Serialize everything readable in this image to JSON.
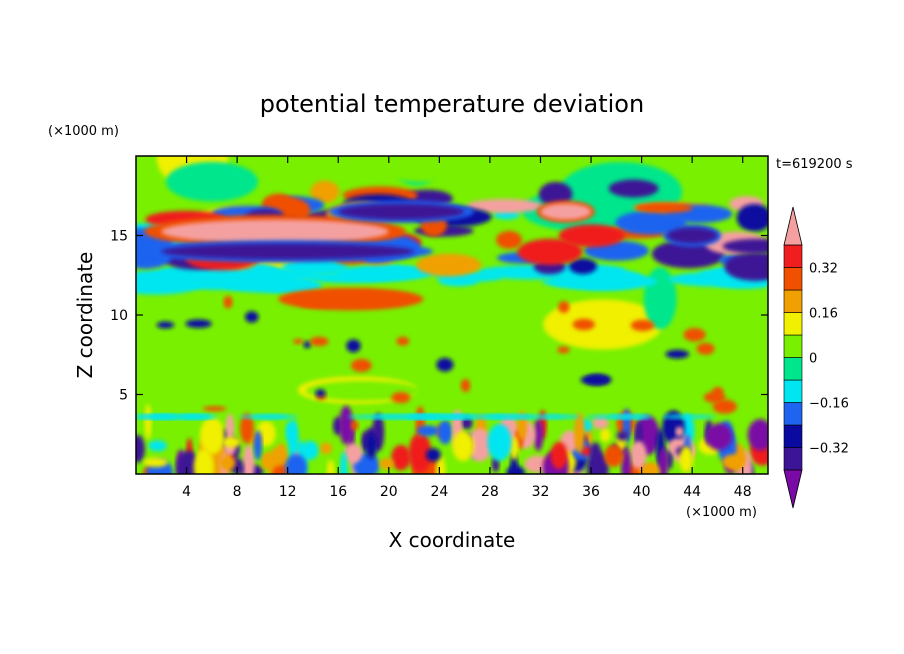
{
  "chart_data": {
    "type": "heatmap",
    "title": "potential temperature deviation",
    "xlabel": "X coordinate",
    "ylabel": "Z coordinate",
    "x_unit": "(×1000 m)",
    "y_unit": "(×1000 m)",
    "time_label": "t=619200 s",
    "xlim": [
      0,
      50
    ],
    "ylim": [
      0,
      20
    ],
    "x_ticks": [
      4,
      8,
      12,
      16,
      20,
      24,
      28,
      32,
      36,
      40,
      44,
      48
    ],
    "y_ticks": [
      5,
      10,
      15
    ],
    "colorbar": {
      "levels": [
        -0.48,
        -0.4,
        -0.32,
        -0.24,
        -0.16,
        -0.08,
        0,
        0.08,
        0.16,
        0.24,
        0.32,
        0.4
      ],
      "tick_values": [
        0.32,
        0.16,
        0,
        -0.16,
        -0.32
      ],
      "tick_labels": [
        "0.32",
        "0.16",
        "0",
        "−0.16",
        "−0.32"
      ],
      "colors": [
        "#7a0aa6",
        "#3c1496",
        "#0a0aa0",
        "#1e64f0",
        "#00e6f0",
        "#00e68c",
        "#78f000",
        "#f0f000",
        "#f0a000",
        "#f05000",
        "#f01e1e",
        "#f5a0a0"
      ]
    },
    "background_level": 0,
    "features": [
      {
        "name": "upper warm band",
        "x": [
          2,
          20
        ],
        "z": [
          14.5,
          16
        ],
        "value": 0.44
      },
      {
        "name": "upper cold band",
        "x": [
          2,
          22
        ],
        "z": [
          13.5,
          14.5
        ],
        "value": -0.36
      },
      {
        "name": "cold patch",
        "x": [
          16,
          26
        ],
        "z": [
          16,
          17
        ],
        "value": -0.36
      },
      {
        "name": "warm patch",
        "x": [
          32,
          36
        ],
        "z": [
          16,
          17
        ],
        "value": 0.4
      },
      {
        "name": "cold patch east",
        "x": [
          42,
          46
        ],
        "z": [
          14.5,
          15.5
        ],
        "value": -0.36
      },
      {
        "name": "mid warm streak",
        "x": [
          12,
          22
        ],
        "z": [
          10.5,
          11.5
        ],
        "value": 0.3
      },
      {
        "name": "boundary layer turbulence",
        "x": [
          0,
          50
        ],
        "z": [
          0,
          3.5
        ],
        "value": 0
      }
    ]
  }
}
